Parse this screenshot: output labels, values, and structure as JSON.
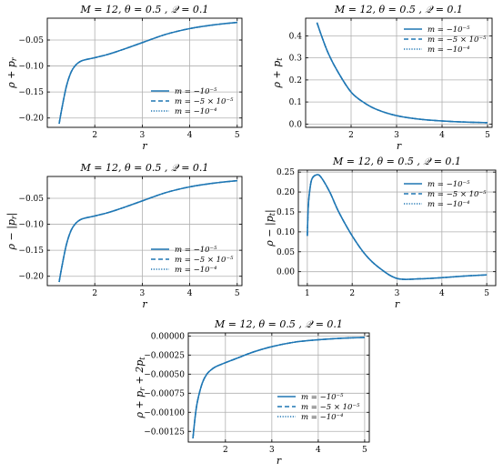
{
  "chart_data": [
    {
      "type": "line",
      "title": "M = 12,  θ = 0.5 , 𝒬 = 0.1",
      "xlabel": "r",
      "ylabel": "ρ + p",
      "ylabel_sub": "r",
      "xlim": [
        1.0,
        5.1
      ],
      "ylim": [
        -0.218,
        -0.008
      ],
      "xticks": [
        2,
        3,
        4,
        5
      ],
      "yticks": [
        -0.2,
        -0.15,
        -0.1,
        -0.05
      ],
      "ytick_labels": [
        "−0.20",
        "−0.15",
        "−0.10",
        "−0.05"
      ],
      "xtick_labels": [
        "2",
        "3",
        "4",
        "5"
      ],
      "grid": true,
      "legend_position": "lower-right",
      "series": [
        {
          "name": "m = −10⁻⁵",
          "style": "solid",
          "x": [
            1.25,
            1.3,
            1.4,
            1.5,
            1.6,
            1.7,
            1.8,
            2.0,
            2.3,
            2.6,
            3.0,
            3.5,
            4.0,
            4.5,
            5.0
          ],
          "y": [
            -0.211,
            -0.185,
            -0.14,
            -0.112,
            -0.098,
            -0.091,
            -0.088,
            -0.084,
            -0.077,
            -0.068,
            -0.055,
            -0.039,
            -0.028,
            -0.021,
            -0.016
          ]
        },
        {
          "name": "m = −5 × 10⁻⁵",
          "style": "dashed",
          "x": [
            1.25,
            1.3,
            1.4,
            1.5,
            1.6,
            1.7,
            1.8,
            2.0,
            2.3,
            2.6,
            3.0,
            3.5,
            4.0,
            4.5,
            5.0
          ],
          "y": [
            -0.211,
            -0.185,
            -0.14,
            -0.112,
            -0.098,
            -0.091,
            -0.088,
            -0.084,
            -0.077,
            -0.068,
            -0.055,
            -0.039,
            -0.028,
            -0.021,
            -0.016
          ]
        },
        {
          "name": "m = −10⁻⁴",
          "style": "dotted",
          "x": [
            1.25,
            1.3,
            1.4,
            1.5,
            1.6,
            1.7,
            1.8,
            2.0,
            2.3,
            2.6,
            3.0,
            3.5,
            4.0,
            4.5,
            5.0
          ],
          "y": [
            -0.211,
            -0.185,
            -0.14,
            -0.112,
            -0.098,
            -0.091,
            -0.088,
            -0.084,
            -0.077,
            -0.068,
            -0.055,
            -0.039,
            -0.028,
            -0.021,
            -0.016
          ]
        }
      ]
    },
    {
      "type": "line",
      "title": "M = 12,  θ = 0.5 , 𝒬 = 0.1",
      "xlabel": "r",
      "ylabel": "ρ + p",
      "ylabel_sub": "t",
      "xlim": [
        1.0,
        5.1
      ],
      "ylim": [
        -0.015,
        0.48
      ],
      "xticks": [
        2,
        3,
        4,
        5
      ],
      "yticks": [
        0.0,
        0.1,
        0.2,
        0.3,
        0.4
      ],
      "ytick_labels": [
        "0.0",
        "0.1",
        "0.2",
        "0.3",
        "0.4"
      ],
      "xtick_labels": [
        "2",
        "3",
        "4",
        "5"
      ],
      "grid": true,
      "legend_position": "upper-right",
      "series": [
        {
          "name": "m = −10⁻⁵",
          "style": "solid",
          "x": [
            1.25,
            1.35,
            1.5,
            1.7,
            2.0,
            2.3,
            2.6,
            3.0,
            3.5,
            4.0,
            4.5,
            5.0
          ],
          "y": [
            0.46,
            0.4,
            0.32,
            0.24,
            0.145,
            0.095,
            0.063,
            0.038,
            0.022,
            0.014,
            0.009,
            0.006
          ]
        },
        {
          "name": "m = −5 × 10⁻⁵",
          "style": "dashed",
          "x": [
            1.25,
            1.35,
            1.5,
            1.7,
            2.0,
            2.3,
            2.6,
            3.0,
            3.5,
            4.0,
            4.5,
            5.0
          ],
          "y": [
            0.46,
            0.4,
            0.32,
            0.24,
            0.145,
            0.095,
            0.063,
            0.038,
            0.022,
            0.014,
            0.009,
            0.006
          ]
        },
        {
          "name": "m = −10⁻⁴",
          "style": "dotted",
          "x": [
            1.25,
            1.35,
            1.5,
            1.7,
            2.0,
            2.3,
            2.6,
            3.0,
            3.5,
            4.0,
            4.5,
            5.0
          ],
          "y": [
            0.46,
            0.4,
            0.32,
            0.24,
            0.145,
            0.095,
            0.063,
            0.038,
            0.022,
            0.014,
            0.009,
            0.006
          ]
        }
      ]
    },
    {
      "type": "line",
      "title": "M = 12,  θ = 0.5 , 𝒬 = 0.1",
      "xlabel": "r",
      "ylabel": "ρ − |p",
      "ylabel_sub": "r",
      "ylabel_suffix": "|",
      "xlim": [
        1.0,
        5.1
      ],
      "ylim": [
        -0.218,
        -0.008
      ],
      "xticks": [
        2,
        3,
        4,
        5
      ],
      "yticks": [
        -0.2,
        -0.15,
        -0.1,
        -0.05
      ],
      "ytick_labels": [
        "−0.20",
        "−0.15",
        "−0.10",
        "−0.05"
      ],
      "xtick_labels": [
        "2",
        "3",
        "4",
        "5"
      ],
      "grid": true,
      "legend_position": "lower-right",
      "series": [
        {
          "name": "m = −10⁻⁵",
          "style": "solid",
          "x": [
            1.25,
            1.3,
            1.4,
            1.5,
            1.6,
            1.7,
            1.8,
            2.0,
            2.3,
            2.6,
            3.0,
            3.5,
            4.0,
            4.5,
            5.0
          ],
          "y": [
            -0.211,
            -0.185,
            -0.14,
            -0.112,
            -0.098,
            -0.091,
            -0.088,
            -0.084,
            -0.077,
            -0.068,
            -0.055,
            -0.039,
            -0.028,
            -0.021,
            -0.016
          ]
        },
        {
          "name": "m = −5 × 10⁻⁵",
          "style": "dashed",
          "x": [
            1.25,
            1.3,
            1.4,
            1.5,
            1.6,
            1.7,
            1.8,
            2.0,
            2.3,
            2.6,
            3.0,
            3.5,
            4.0,
            4.5,
            5.0
          ],
          "y": [
            -0.211,
            -0.185,
            -0.14,
            -0.112,
            -0.098,
            -0.091,
            -0.088,
            -0.084,
            -0.077,
            -0.068,
            -0.055,
            -0.039,
            -0.028,
            -0.021,
            -0.016
          ]
        },
        {
          "name": "m = −10⁻⁴",
          "style": "dotted",
          "x": [
            1.25,
            1.3,
            1.4,
            1.5,
            1.6,
            1.7,
            1.8,
            2.0,
            2.3,
            2.6,
            3.0,
            3.5,
            4.0,
            4.5,
            5.0
          ],
          "y": [
            -0.211,
            -0.185,
            -0.14,
            -0.112,
            -0.098,
            -0.091,
            -0.088,
            -0.084,
            -0.077,
            -0.068,
            -0.055,
            -0.039,
            -0.028,
            -0.021,
            -0.016
          ]
        }
      ]
    },
    {
      "type": "line",
      "title": "M = 12,  θ = 0.5 , 𝒬 = 0.1",
      "xlabel": "r",
      "ylabel": "ρ − |p",
      "ylabel_sub": "t",
      "ylabel_suffix": "|",
      "xlim": [
        0.8,
        5.2
      ],
      "ylim": [
        -0.035,
        0.255
      ],
      "xticks": [
        1,
        2,
        3,
        4,
        5
      ],
      "yticks": [
        0.0,
        0.05,
        0.1,
        0.15,
        0.2,
        0.25
      ],
      "ytick_labels": [
        "0.00",
        "0.05",
        "0.10",
        "0.15",
        "0.20",
        "0.25"
      ],
      "xtick_labels": [
        "1",
        "2",
        "3",
        "4",
        "5"
      ],
      "grid": true,
      "legend_position": "upper-right",
      "series": [
        {
          "name": "m = −10⁻⁵",
          "style": "solid",
          "x": [
            1.0,
            1.02,
            1.05,
            1.1,
            1.2,
            1.3,
            1.5,
            1.7,
            2.0,
            2.3,
            2.6,
            3.0,
            3.5,
            4.0,
            4.5,
            5.0
          ],
          "y": [
            0.09,
            0.16,
            0.2,
            0.232,
            0.243,
            0.238,
            0.2,
            0.15,
            0.09,
            0.042,
            0.01,
            -0.017,
            -0.018,
            -0.015,
            -0.011,
            -0.008
          ]
        },
        {
          "name": "m = −5 × 10⁻⁵",
          "style": "dashed",
          "x": [
            1.0,
            1.02,
            1.05,
            1.1,
            1.2,
            1.3,
            1.5,
            1.7,
            2.0,
            2.3,
            2.6,
            3.0,
            3.5,
            4.0,
            4.5,
            5.0
          ],
          "y": [
            0.09,
            0.16,
            0.2,
            0.232,
            0.243,
            0.238,
            0.2,
            0.15,
            0.09,
            0.042,
            0.01,
            -0.017,
            -0.018,
            -0.015,
            -0.011,
            -0.008
          ]
        },
        {
          "name": "m = −10⁻⁴",
          "style": "dotted",
          "x": [
            1.0,
            1.02,
            1.05,
            1.1,
            1.2,
            1.3,
            1.5,
            1.7,
            2.0,
            2.3,
            2.6,
            3.0,
            3.5,
            4.0,
            4.5,
            5.0
          ],
          "y": [
            0.09,
            0.16,
            0.2,
            0.232,
            0.243,
            0.238,
            0.2,
            0.15,
            0.09,
            0.042,
            0.01,
            -0.017,
            -0.018,
            -0.015,
            -0.011,
            -0.008
          ]
        }
      ]
    },
    {
      "type": "line",
      "title": "M = 12,  θ = 0.5 , 𝒬 = 0.1",
      "xlabel": "r",
      "ylabel": "ρ + p",
      "ylabel_sub": "r",
      "ylabel_mid": " + 2p",
      "ylabel_sub2": "t",
      "xlim": [
        1.2,
        5.1
      ],
      "ylim": [
        -0.00139,
        4e-05
      ],
      "xticks": [
        2,
        3,
        4,
        5
      ],
      "yticks": [
        0.0,
        -0.00025,
        -0.0005,
        -0.00075,
        -0.001,
        -0.00125
      ],
      "ytick_labels": [
        "0.00000",
        "−0.00025",
        "−0.00050",
        "−0.00075",
        "−0.00100",
        "−0.00125"
      ],
      "xtick_labels": [
        "2",
        "3",
        "4",
        "5"
      ],
      "grid": true,
      "legend_position": "lower-right",
      "series": [
        {
          "name": "m = −10⁻⁵",
          "style": "solid",
          "x": [
            1.3,
            1.35,
            1.4,
            1.5,
            1.6,
            1.7,
            1.8,
            2.0,
            2.3,
            2.6,
            3.0,
            3.5,
            4.0,
            4.5,
            5.0
          ],
          "y": [
            -0.00134,
            -0.00105,
            -0.00085,
            -0.00062,
            -0.0005,
            -0.00044,
            -0.0004,
            -0.00035,
            -0.00028,
            -0.00021,
            -0.00014,
            -8e-05,
            -5e-05,
            -3e-05,
            -2e-05
          ]
        },
        {
          "name": "m = −5 × 10⁻⁵",
          "style": "dashed",
          "x": [
            1.3,
            1.35,
            1.4,
            1.5,
            1.6,
            1.7,
            1.8,
            2.0,
            2.3,
            2.6,
            3.0,
            3.5,
            4.0,
            4.5,
            5.0
          ],
          "y": [
            -0.00134,
            -0.00105,
            -0.00085,
            -0.00062,
            -0.0005,
            -0.00044,
            -0.0004,
            -0.00035,
            -0.00028,
            -0.00021,
            -0.00014,
            -8e-05,
            -5e-05,
            -3e-05,
            -2e-05
          ]
        },
        {
          "name": "m = −10⁻⁴",
          "style": "dotted",
          "x": [
            1.3,
            1.35,
            1.4,
            1.5,
            1.6,
            1.7,
            1.8,
            2.0,
            2.3,
            2.6,
            3.0,
            3.5,
            4.0,
            4.5,
            5.0
          ],
          "y": [
            -0.00134,
            -0.00105,
            -0.00085,
            -0.00062,
            -0.0005,
            -0.00044,
            -0.0004,
            -0.00035,
            -0.00028,
            -0.00021,
            -0.00014,
            -8e-05,
            -5e-05,
            -3e-05,
            -2e-05
          ]
        }
      ]
    }
  ],
  "line_color": "#1f77b4"
}
